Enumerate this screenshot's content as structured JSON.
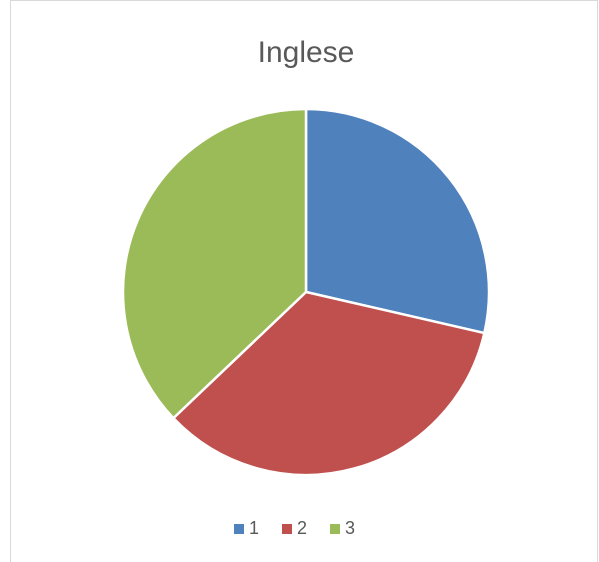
{
  "chart_data": {
    "type": "pie",
    "title": "Inglese",
    "categories": [
      "1",
      "2",
      "3"
    ],
    "values": [
      28.6,
      34.3,
      37.1
    ],
    "colors": [
      "#4f81bd",
      "#c0504d",
      "#9bbb59"
    ],
    "legend": "bottom"
  }
}
